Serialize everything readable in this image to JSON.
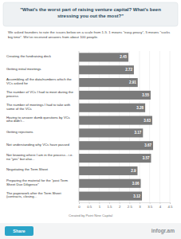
{
  "chart_data": {
    "type": "bar",
    "orientation": "horizontal",
    "title": "\"What's the worst part of raising venture capital? What's been stressing you out the most?\"",
    "subtitle": "We asked founders to rate the issues below on a scale from 1-5. 1 means \"easy-peasy\", 5 means \"sucks big time\". We've received answers from about 100 people.",
    "categories": [
      "Creating the fundraising deck",
      "Getting initial meetings",
      "Assembling all the data/numbers which the VCs asked for",
      "The number of VCs I had to meet during the process",
      "The number of meetings I had to take with some of the VCs",
      "Having to answer dumb questions by VCs who didn't...",
      "Getting rejections",
      "Not understanding why VCs have passed",
      "Not knowing where I am in the process - i.e. no \"yes\" but also...",
      "Negotiating the Term Sheet",
      "Preparing the material for the \"post Term Sheet Due Diligence\"",
      "The paperwork after the Term Sheet (contracts, closing..."
    ],
    "values": [
      2.45,
      2.72,
      2.91,
      3.55,
      3.28,
      3.63,
      3.17,
      3.67,
      3.57,
      2.9,
      3.06,
      3.12
    ],
    "color": "#7b7b7b",
    "xlim": [
      0,
      4.5
    ],
    "xticks": [
      0,
      0.5,
      1,
      1.5,
      2,
      2.5,
      3,
      3.5,
      4,
      4.5
    ],
    "grid": true,
    "data_labels": true,
    "annotations": [
      "Created by Point Nine Capital"
    ]
  },
  "footer": {
    "share": "Share",
    "brand": "infogr.am"
  }
}
